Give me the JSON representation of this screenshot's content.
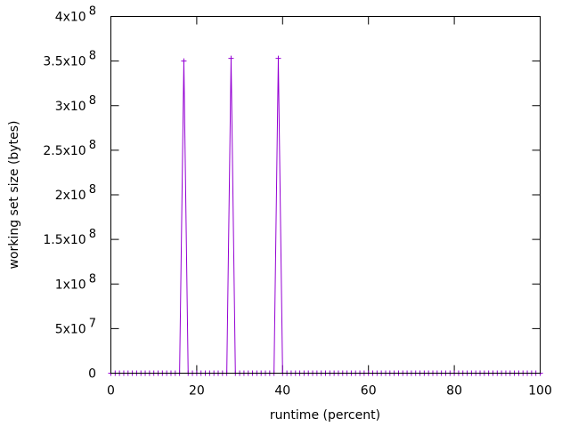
{
  "chart_data": {
    "type": "line",
    "title": "",
    "xlabel": "runtime (percent)",
    "ylabel": "working set size (bytes)",
    "xlim": [
      0,
      100
    ],
    "ylim": [
      0,
      400000000
    ],
    "grid": false,
    "legend": "none",
    "line_color": "#9400d3",
    "x_ticks": [
      {
        "value": 0,
        "label": "0"
      },
      {
        "value": 20,
        "label": "20"
      },
      {
        "value": 40,
        "label": "40"
      },
      {
        "value": 60,
        "label": "60"
      },
      {
        "value": 80,
        "label": "80"
      },
      {
        "value": 100,
        "label": "100"
      }
    ],
    "y_ticks": [
      {
        "value": 0,
        "mantissa": "0",
        "exponent": ""
      },
      {
        "value": 50000000,
        "mantissa": "5x10",
        "exponent": "7"
      },
      {
        "value": 100000000,
        "mantissa": "1x10",
        "exponent": "8"
      },
      {
        "value": 150000000,
        "mantissa": "1.5x10",
        "exponent": "8"
      },
      {
        "value": 200000000,
        "mantissa": "2x10",
        "exponent": "8"
      },
      {
        "value": 250000000,
        "mantissa": "2.5x10",
        "exponent": "8"
      },
      {
        "value": 300000000,
        "mantissa": "3x10",
        "exponent": "8"
      },
      {
        "value": 350000000,
        "mantissa": "3.5x10",
        "exponent": "8"
      },
      {
        "value": 400000000,
        "mantissa": "4x10",
        "exponent": "8"
      }
    ],
    "series": [
      {
        "points": [
          {
            "x": 0,
            "y": 0
          },
          {
            "x": 1,
            "y": 0
          },
          {
            "x": 2,
            "y": 0
          },
          {
            "x": 3,
            "y": 0
          },
          {
            "x": 4,
            "y": 0
          },
          {
            "x": 5,
            "y": 0
          },
          {
            "x": 6,
            "y": 0
          },
          {
            "x": 7,
            "y": 0
          },
          {
            "x": 8,
            "y": 0
          },
          {
            "x": 9,
            "y": 0
          },
          {
            "x": 10,
            "y": 0
          },
          {
            "x": 11,
            "y": 0
          },
          {
            "x": 12,
            "y": 0
          },
          {
            "x": 13,
            "y": 0
          },
          {
            "x": 14,
            "y": 0
          },
          {
            "x": 15,
            "y": 0
          },
          {
            "x": 16,
            "y": 0
          },
          {
            "x": 17,
            "y": 350000000
          },
          {
            "x": 18,
            "y": 0
          },
          {
            "x": 19,
            "y": 0
          },
          {
            "x": 20,
            "y": 0
          },
          {
            "x": 21,
            "y": 0
          },
          {
            "x": 22,
            "y": 0
          },
          {
            "x": 23,
            "y": 0
          },
          {
            "x": 24,
            "y": 0
          },
          {
            "x": 25,
            "y": 0
          },
          {
            "x": 26,
            "y": 0
          },
          {
            "x": 27,
            "y": 0
          },
          {
            "x": 28,
            "y": 353000000
          },
          {
            "x": 29,
            "y": 0
          },
          {
            "x": 30,
            "y": 0
          },
          {
            "x": 31,
            "y": 0
          },
          {
            "x": 32,
            "y": 0
          },
          {
            "x": 33,
            "y": 0
          },
          {
            "x": 34,
            "y": 0
          },
          {
            "x": 35,
            "y": 0
          },
          {
            "x": 36,
            "y": 0
          },
          {
            "x": 37,
            "y": 0
          },
          {
            "x": 38,
            "y": 0
          },
          {
            "x": 39,
            "y": 353000000
          },
          {
            "x": 40,
            "y": 0
          },
          {
            "x": 41,
            "y": 0
          },
          {
            "x": 42,
            "y": 0
          },
          {
            "x": 43,
            "y": 0
          },
          {
            "x": 44,
            "y": 0
          },
          {
            "x": 45,
            "y": 0
          },
          {
            "x": 46,
            "y": 0
          },
          {
            "x": 47,
            "y": 0
          },
          {
            "x": 48,
            "y": 0
          },
          {
            "x": 49,
            "y": 0
          },
          {
            "x": 50,
            "y": 0
          },
          {
            "x": 51,
            "y": 0
          },
          {
            "x": 52,
            "y": 0
          },
          {
            "x": 53,
            "y": 0
          },
          {
            "x": 54,
            "y": 0
          },
          {
            "x": 55,
            "y": 0
          },
          {
            "x": 56,
            "y": 0
          },
          {
            "x": 57,
            "y": 0
          },
          {
            "x": 58,
            "y": 0
          },
          {
            "x": 59,
            "y": 0
          },
          {
            "x": 60,
            "y": 0
          },
          {
            "x": 61,
            "y": 0
          },
          {
            "x": 62,
            "y": 0
          },
          {
            "x": 63,
            "y": 0
          },
          {
            "x": 64,
            "y": 0
          },
          {
            "x": 65,
            "y": 0
          },
          {
            "x": 66,
            "y": 0
          },
          {
            "x": 67,
            "y": 0
          },
          {
            "x": 68,
            "y": 0
          },
          {
            "x": 69,
            "y": 0
          },
          {
            "x": 70,
            "y": 0
          },
          {
            "x": 71,
            "y": 0
          },
          {
            "x": 72,
            "y": 0
          },
          {
            "x": 73,
            "y": 0
          },
          {
            "x": 74,
            "y": 0
          },
          {
            "x": 75,
            "y": 0
          },
          {
            "x": 76,
            "y": 0
          },
          {
            "x": 77,
            "y": 0
          },
          {
            "x": 78,
            "y": 0
          },
          {
            "x": 79,
            "y": 0
          },
          {
            "x": 80,
            "y": 0
          },
          {
            "x": 81,
            "y": 0
          },
          {
            "x": 82,
            "y": 0
          },
          {
            "x": 83,
            "y": 0
          },
          {
            "x": 84,
            "y": 0
          },
          {
            "x": 85,
            "y": 0
          },
          {
            "x": 86,
            "y": 0
          },
          {
            "x": 87,
            "y": 0
          },
          {
            "x": 88,
            "y": 0
          },
          {
            "x": 89,
            "y": 0
          },
          {
            "x": 90,
            "y": 0
          },
          {
            "x": 91,
            "y": 0
          },
          {
            "x": 92,
            "y": 0
          },
          {
            "x": 93,
            "y": 0
          },
          {
            "x": 94,
            "y": 0
          },
          {
            "x": 95,
            "y": 0
          },
          {
            "x": 96,
            "y": 0
          },
          {
            "x": 97,
            "y": 0
          },
          {
            "x": 98,
            "y": 0
          },
          {
            "x": 99,
            "y": 0
          },
          {
            "x": 100,
            "y": 0
          }
        ]
      }
    ]
  }
}
